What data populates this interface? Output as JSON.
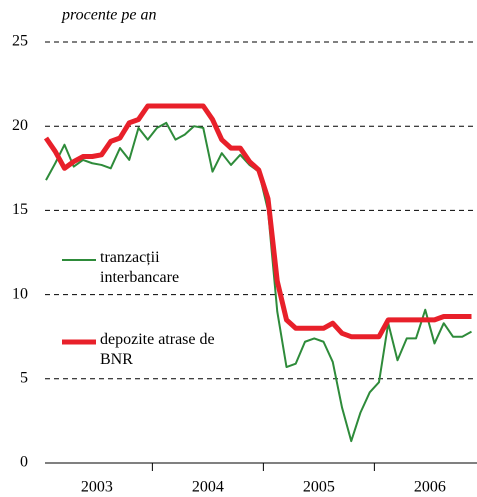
{
  "chart_data": {
    "type": "line",
    "y_axis_label": "procente pe an",
    "categories": [
      null,
      null,
      null,
      null,
      null,
      null,
      "2003",
      null,
      null,
      null,
      null,
      null,
      null,
      null,
      null,
      null,
      null,
      null,
      "2004",
      null,
      null,
      null,
      null,
      null,
      null,
      null,
      null,
      null,
      null,
      null,
      "2005",
      null,
      null,
      null,
      null,
      null,
      null,
      null,
      null,
      null,
      null,
      null,
      "2006",
      null,
      null,
      null,
      null
    ],
    "series": [
      {
        "name": "tranzacții interbancare",
        "color": "#2e8b3a",
        "width": 2,
        "values": [
          16.8,
          17.8,
          18.9,
          17.6,
          18.0,
          17.8,
          17.7,
          17.5,
          18.7,
          18.0,
          19.9,
          19.2,
          19.9,
          20.2,
          19.2,
          19.5,
          20.0,
          19.9,
          17.3,
          18.4,
          17.7,
          18.3,
          17.7,
          17.3,
          15.0,
          9.0,
          5.7,
          5.9,
          7.2,
          7.4,
          7.2,
          6.0,
          3.3,
          1.3,
          3.0,
          4.2,
          4.8,
          8.3,
          6.1,
          7.4,
          7.4,
          9.1,
          7.1,
          8.3,
          7.5,
          7.5,
          7.8
        ]
      },
      {
        "name": "depozite atrase de BNR",
        "color": "#e8202a",
        "width": 5,
        "values": [
          19.3,
          18.5,
          17.5,
          17.9,
          18.2,
          18.2,
          18.3,
          19.1,
          19.3,
          20.2,
          20.4,
          21.2,
          21.2,
          21.2,
          21.2,
          21.2,
          21.2,
          21.2,
          20.4,
          19.2,
          18.7,
          18.7,
          17.9,
          17.4,
          15.7,
          10.8,
          8.5,
          8.0,
          8.0,
          8.0,
          8.0,
          8.3,
          7.7,
          7.5,
          7.5,
          7.5,
          7.5,
          8.5,
          8.5,
          8.5,
          8.5,
          8.5,
          8.5,
          8.7,
          8.7,
          8.7,
          8.7
        ]
      }
    ],
    "ylim": [
      0,
      25
    ],
    "yticks": [
      0,
      5,
      10,
      15,
      20,
      25
    ],
    "grid": true
  }
}
